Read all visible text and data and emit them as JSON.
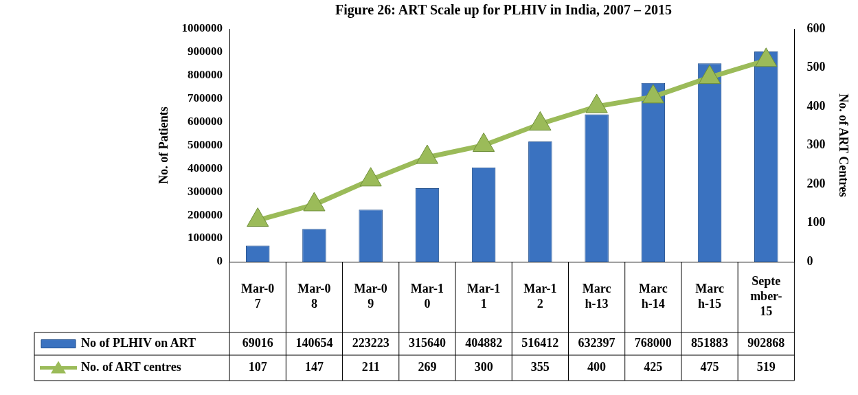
{
  "chart_data": {
    "type": "bar",
    "title": "Figure 26: ART Scale up for PLHIV in India, 2007 – 2015",
    "ylabel": "No. of Patients",
    "y2label": "No. of ART Centres",
    "categories": [
      "Mar-07",
      "Mar-08",
      "Mar-09",
      "Mar-10",
      "Mar-11",
      "Mar-12",
      "March-13",
      "March-14",
      "March-15",
      "September-15"
    ],
    "series": [
      {
        "name": "No of PLHIV on ART",
        "color": "#3a72c0",
        "values": [
          69016,
          140654,
          223223,
          315640,
          404882,
          516412,
          632397,
          768000,
          851883,
          902868
        ]
      },
      {
        "name": "No. of ART centres",
        "type": "line",
        "axis": "y2",
        "color": "#9bbb59",
        "marker": "triangle",
        "values": [
          107,
          147,
          211,
          269,
          300,
          355,
          400,
          425,
          475,
          519
        ]
      }
    ],
    "ylim": [
      0,
      1000000
    ],
    "yticks": [
      0,
      100000,
      200000,
      300000,
      400000,
      500000,
      600000,
      700000,
      800000,
      900000,
      1000000
    ],
    "y2lim": [
      0,
      600
    ],
    "y2ticks": [
      0,
      100,
      200,
      300,
      400,
      500,
      600
    ],
    "grid": false,
    "legend": "bottom",
    "data_labels": true
  }
}
